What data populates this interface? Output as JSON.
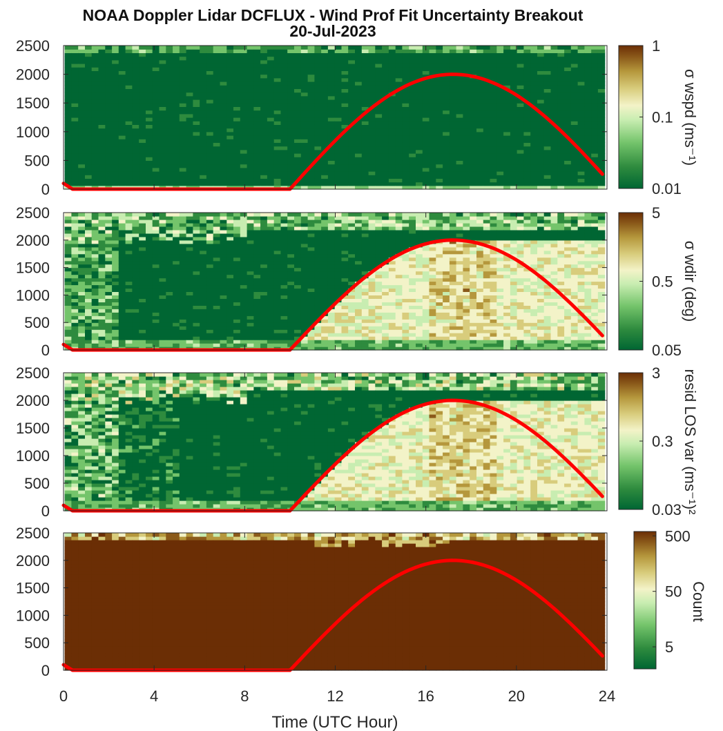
{
  "chart_data": {
    "type": "heatmap",
    "title": "NOAA Doppler Lidar DCFLUX - Wind Prof Fit Uncertainty Breakout",
    "subtitle": "20-Jul-2023",
    "xlabel": "Time (UTC Hour)",
    "xlim": [
      0,
      24
    ],
    "x_ticks": [
      "0",
      "4",
      "8",
      "12",
      "16",
      "20",
      "24"
    ],
    "y_ticks": [
      "0",
      "500",
      "1000",
      "1500",
      "2000",
      "2500"
    ],
    "ylim": [
      0,
      2500
    ],
    "colormap": [
      "#006633",
      "#2e8b3e",
      "#74c46b",
      "#c8edb1",
      "#f3f3c8",
      "#d8cc7c",
      "#b5973c",
      "#8b5a1a",
      "#6b2e05"
    ],
    "line_series": {
      "color": "#ff0000",
      "description_points": [
        [
          0.0,
          100
        ],
        [
          0.4,
          0
        ],
        [
          10.0,
          0
        ],
        [
          17.2,
          2000
        ],
        [
          23.8,
          280
        ]
      ]
    },
    "panels": [
      {
        "name": "wspd_uncertainty",
        "colorbar_label": "σ wspd (ms⁻¹)",
        "colorbar_ticks": [
          "1",
          "0.1",
          "0.01"
        ],
        "colorbar_scale": "log",
        "colorbar_range": [
          0.01,
          1
        ]
      },
      {
        "name": "wdir_uncertainty",
        "colorbar_label": "σ wdir (deg)",
        "colorbar_ticks": [
          "5",
          "0.5",
          "0.05"
        ],
        "colorbar_scale": "log",
        "colorbar_range": [
          0.05,
          5
        ]
      },
      {
        "name": "resid_los_var",
        "colorbar_label": "resid LOS var (ms⁻¹)²",
        "colorbar_ticks": [
          "3",
          "0.3",
          "0.03"
        ],
        "colorbar_scale": "log",
        "colorbar_range": [
          0.03,
          3
        ]
      },
      {
        "name": "count",
        "colorbar_label": "Count",
        "colorbar_ticks": [
          "500",
          "50",
          "5"
        ],
        "colorbar_scale": "log",
        "colorbar_range": [
          2,
          600
        ]
      }
    ]
  }
}
